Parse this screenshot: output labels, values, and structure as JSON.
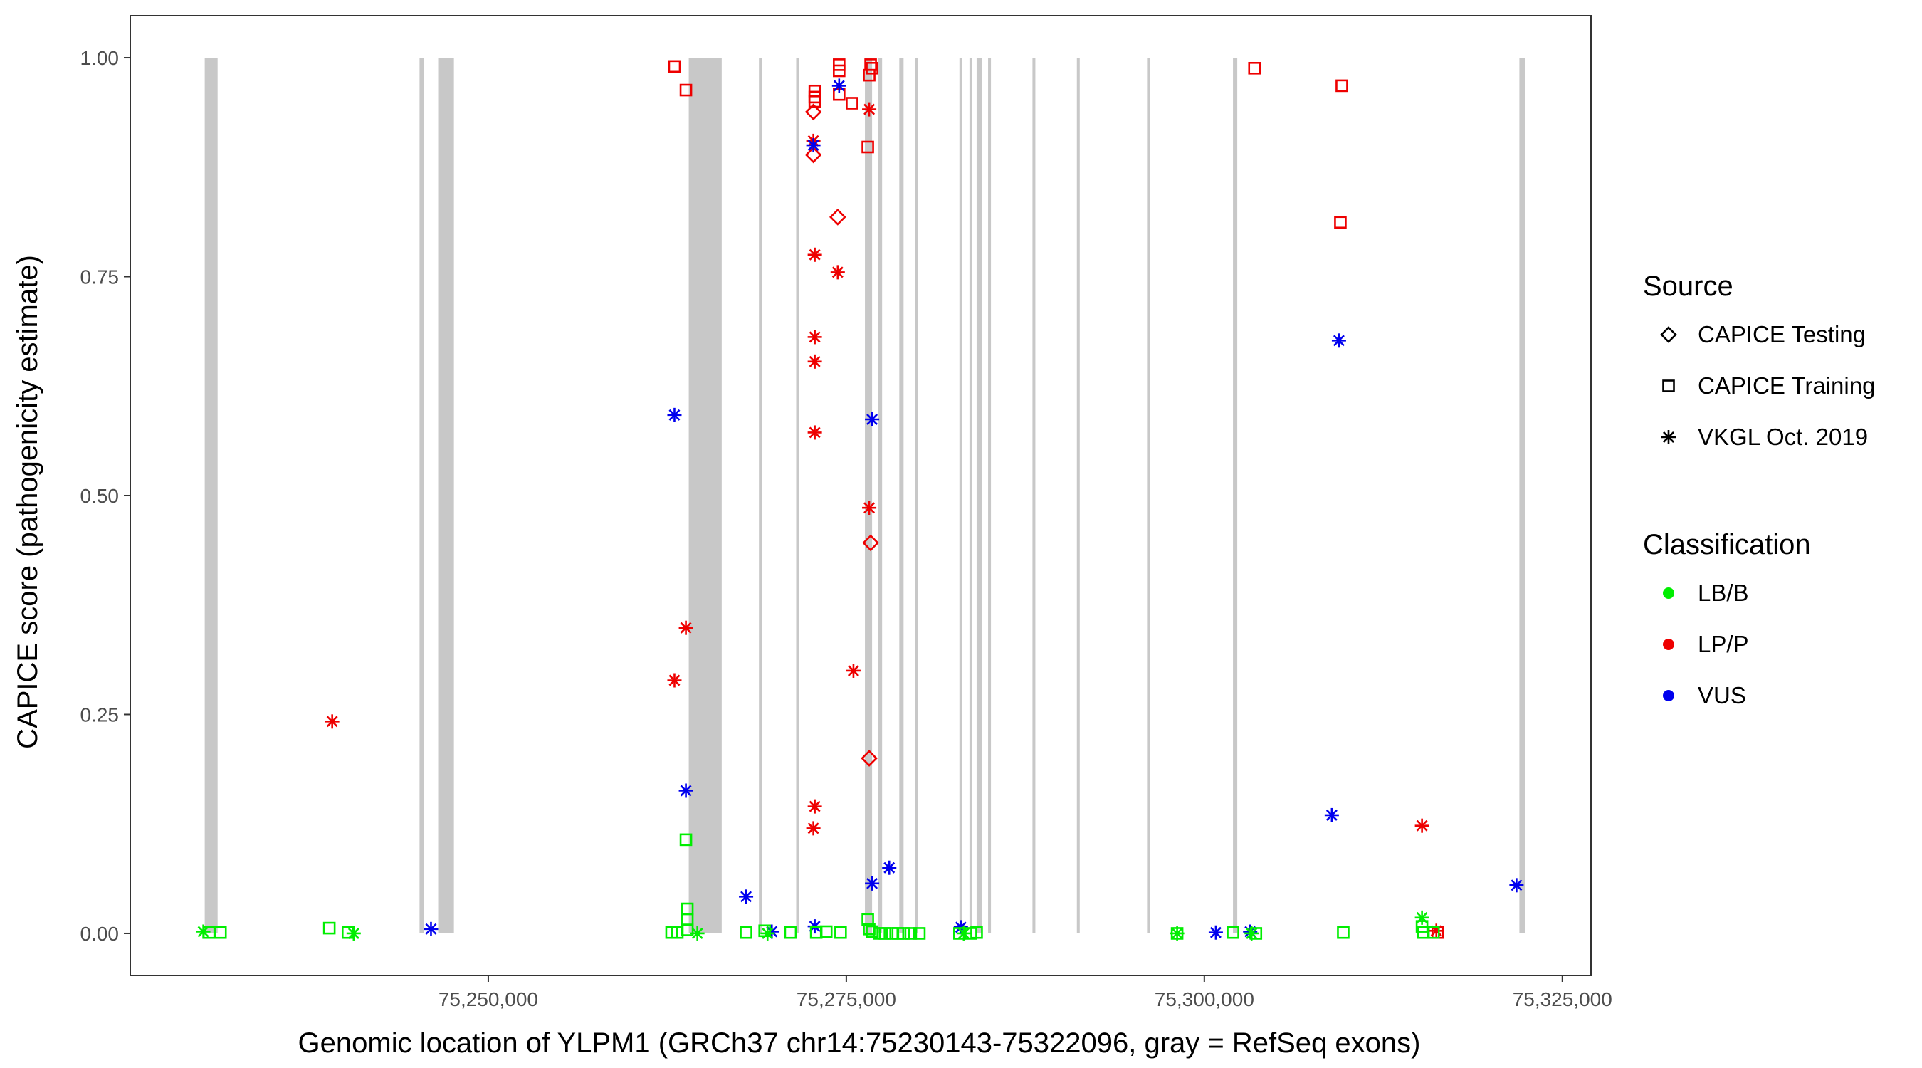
{
  "chart_data": {
    "type": "scatter",
    "title": "",
    "xlabel": "Genomic location of YLPM1 (GRCh37 chr14:75230143-75322096, gray = RefSeq exons)",
    "ylabel": "CAPICE score (pathogenicity estimate)",
    "xlim": [
      75225000,
      75327000
    ],
    "ylim": [
      -0.048,
      1.048
    ],
    "x_ticks": [
      75250000,
      75275000,
      75300000,
      75325000
    ],
    "x_tick_labels": [
      "75,250,000",
      "75,275,000",
      "75,300,000",
      "75,325,000"
    ],
    "y_ticks": [
      0,
      0.25,
      0.5,
      0.75,
      1.0
    ],
    "y_tick_labels": [
      "0.00",
      "0.25",
      "0.50",
      "0.75",
      "1.00"
    ],
    "grid": false,
    "exons": [
      [
        75230200,
        75231100
      ],
      [
        75245200,
        75245500
      ],
      [
        75246500,
        75247600
      ],
      [
        75264000,
        75266300
      ],
      [
        75268900,
        75269100
      ],
      [
        75271500,
        75271700
      ],
      [
        75276300,
        75276800
      ],
      [
        75277200,
        75277500
      ],
      [
        75278700,
        75279000
      ],
      [
        75279800,
        75280000
      ],
      [
        75282900,
        75283100
      ],
      [
        75283600,
        75283800
      ],
      [
        75284100,
        75284500
      ],
      [
        75284900,
        75285100
      ],
      [
        75288000,
        75288200
      ],
      [
        75291100,
        75291300
      ],
      [
        75296000,
        75296200
      ],
      [
        75302000,
        75302300
      ],
      [
        75322000,
        75322400
      ]
    ],
    "legend": {
      "position": "right",
      "source_title": "Source",
      "source_entries": [
        {
          "label": "CAPICE Testing",
          "shape": "diamond"
        },
        {
          "label": "CAPICE Training",
          "shape": "square"
        },
        {
          "label": "VKGL Oct. 2019",
          "shape": "asterisk"
        }
      ],
      "class_title": "Classification",
      "class_entries": [
        {
          "label": "LB/B",
          "color": "#00ee00"
        },
        {
          "label": "LP/P",
          "color": "#ee0000"
        },
        {
          "label": "VUS",
          "color": "#0000ee"
        }
      ]
    },
    "colors": {
      "LB/B": "#00ee00",
      "LP/P": "#ee0000",
      "VUS": "#0000ee"
    },
    "points": [
      {
        "x": 75239100,
        "y": 0.242,
        "source": "VKGL Oct. 2019",
        "class": "LP/P"
      },
      {
        "x": 75263000,
        "y": 0.99,
        "source": "CAPICE Training",
        "class": "LP/P"
      },
      {
        "x": 75263800,
        "y": 0.963,
        "source": "CAPICE Training",
        "class": "LP/P"
      },
      {
        "x": 75263000,
        "y": 0.289,
        "source": "VKGL Oct. 2019",
        "class": "LP/P"
      },
      {
        "x": 75263800,
        "y": 0.349,
        "source": "VKGL Oct. 2019",
        "class": "LP/P"
      },
      {
        "x": 75272800,
        "y": 0.962,
        "source": "CAPICE Training",
        "class": "LP/P"
      },
      {
        "x": 75272800,
        "y": 0.955,
        "source": "CAPICE Training",
        "class": "LP/P"
      },
      {
        "x": 75272800,
        "y": 0.95,
        "source": "CAPICE Training",
        "class": "LP/P"
      },
      {
        "x": 75272700,
        "y": 0.938,
        "source": "CAPICE Testing",
        "class": "LP/P"
      },
      {
        "x": 75272700,
        "y": 0.905,
        "source": "VKGL Oct. 2019",
        "class": "LP/P"
      },
      {
        "x": 75272700,
        "y": 0.889,
        "source": "CAPICE Testing",
        "class": "LP/P"
      },
      {
        "x": 75272800,
        "y": 0.775,
        "source": "VKGL Oct. 2019",
        "class": "LP/P"
      },
      {
        "x": 75272800,
        "y": 0.681,
        "source": "VKGL Oct. 2019",
        "class": "LP/P"
      },
      {
        "x": 75272800,
        "y": 0.653,
        "source": "VKGL Oct. 2019",
        "class": "LP/P"
      },
      {
        "x": 75272800,
        "y": 0.572,
        "source": "VKGL Oct. 2019",
        "class": "LP/P"
      },
      {
        "x": 75272800,
        "y": 0.145,
        "source": "VKGL Oct. 2019",
        "class": "LP/P"
      },
      {
        "x": 75272700,
        "y": 0.12,
        "source": "VKGL Oct. 2019",
        "class": "LP/P"
      },
      {
        "x": 75274500,
        "y": 0.992,
        "source": "CAPICE Training",
        "class": "LP/P"
      },
      {
        "x": 75274500,
        "y": 0.985,
        "source": "CAPICE Training",
        "class": "LP/P"
      },
      {
        "x": 75274500,
        "y": 0.958,
        "source": "CAPICE Training",
        "class": "LP/P"
      },
      {
        "x": 75275400,
        "y": 0.948,
        "source": "CAPICE Training",
        "class": "LP/P"
      },
      {
        "x": 75274400,
        "y": 0.818,
        "source": "CAPICE Testing",
        "class": "LP/P"
      },
      {
        "x": 75274400,
        "y": 0.755,
        "source": "VKGL Oct. 2019",
        "class": "LP/P"
      },
      {
        "x": 75275500,
        "y": 0.3,
        "source": "VKGL Oct. 2019",
        "class": "LP/P"
      },
      {
        "x": 75276700,
        "y": 0.992,
        "source": "CAPICE Training",
        "class": "LP/P"
      },
      {
        "x": 75276800,
        "y": 0.988,
        "source": "CAPICE Training",
        "class": "LP/P"
      },
      {
        "x": 75276600,
        "y": 0.98,
        "source": "CAPICE Training",
        "class": "LP/P"
      },
      {
        "x": 75276600,
        "y": 0.941,
        "source": "VKGL Oct. 2019",
        "class": "LP/P"
      },
      {
        "x": 75276500,
        "y": 0.898,
        "source": "CAPICE Training",
        "class": "LP/P"
      },
      {
        "x": 75276600,
        "y": 0.486,
        "source": "VKGL Oct. 2019",
        "class": "LP/P"
      },
      {
        "x": 75276700,
        "y": 0.446,
        "source": "CAPICE Testing",
        "class": "LP/P"
      },
      {
        "x": 75276600,
        "y": 0.2,
        "source": "CAPICE Testing",
        "class": "LP/P"
      },
      {
        "x": 75303500,
        "y": 0.988,
        "source": "CAPICE Training",
        "class": "LP/P"
      },
      {
        "x": 75309600,
        "y": 0.968,
        "source": "CAPICE Training",
        "class": "LP/P"
      },
      {
        "x": 75309500,
        "y": 0.812,
        "source": "CAPICE Training",
        "class": "LP/P"
      },
      {
        "x": 75315200,
        "y": 0.123,
        "source": "VKGL Oct. 2019",
        "class": "LP/P"
      },
      {
        "x": 75316200,
        "y": 0.003,
        "source": "VKGL Oct. 2019",
        "class": "LP/P"
      },
      {
        "x": 75316300,
        "y": 0.001,
        "source": "CAPICE Training",
        "class": "LP/P"
      },
      {
        "x": 75246000,
        "y": 0.005,
        "source": "VKGL Oct. 2019",
        "class": "VUS"
      },
      {
        "x": 75263000,
        "y": 0.592,
        "source": "VKGL Oct. 2019",
        "class": "VUS"
      },
      {
        "x": 75263800,
        "y": 0.163,
        "source": "VKGL Oct. 2019",
        "class": "VUS"
      },
      {
        "x": 75268000,
        "y": 0.042,
        "source": "VKGL Oct. 2019",
        "class": "VUS"
      },
      {
        "x": 75269800,
        "y": 0.002,
        "source": "VKGL Oct. 2019",
        "class": "VUS"
      },
      {
        "x": 75272700,
        "y": 0.9,
        "source": "VKGL Oct. 2019",
        "class": "VUS"
      },
      {
        "x": 75272800,
        "y": 0.008,
        "source": "VKGL Oct. 2019",
        "class": "VUS"
      },
      {
        "x": 75274500,
        "y": 0.968,
        "source": "VKGL Oct. 2019",
        "class": "VUS"
      },
      {
        "x": 75276800,
        "y": 0.587,
        "source": "VKGL Oct. 2019",
        "class": "VUS"
      },
      {
        "x": 75276800,
        "y": 0.057,
        "source": "VKGL Oct. 2019",
        "class": "VUS"
      },
      {
        "x": 75278000,
        "y": 0.075,
        "source": "VKGL Oct. 2019",
        "class": "VUS"
      },
      {
        "x": 75283000,
        "y": 0.007,
        "source": "VKGL Oct. 2019",
        "class": "VUS"
      },
      {
        "x": 75300800,
        "y": 0.001,
        "source": "VKGL Oct. 2019",
        "class": "VUS"
      },
      {
        "x": 75303200,
        "y": 0.002,
        "source": "VKGL Oct. 2019",
        "class": "VUS"
      },
      {
        "x": 75308900,
        "y": 0.135,
        "source": "VKGL Oct. 2019",
        "class": "VUS"
      },
      {
        "x": 75309400,
        "y": 0.677,
        "source": "VKGL Oct. 2019",
        "class": "VUS"
      },
      {
        "x": 75321800,
        "y": 0.055,
        "source": "VKGL Oct. 2019",
        "class": "VUS"
      },
      {
        "x": 75230100,
        "y": 0.002,
        "source": "VKGL Oct. 2019",
        "class": "LB/B"
      },
      {
        "x": 75230500,
        "y": 0.001,
        "source": "CAPICE Training",
        "class": "LB/B"
      },
      {
        "x": 75231300,
        "y": 0.001,
        "source": "CAPICE Training",
        "class": "LB/B"
      },
      {
        "x": 75238900,
        "y": 0.006,
        "source": "CAPICE Training",
        "class": "LB/B"
      },
      {
        "x": 75240200,
        "y": 0.001,
        "source": "CAPICE Training",
        "class": "LB/B"
      },
      {
        "x": 75240600,
        "y": 0.0,
        "source": "VKGL Oct. 2019",
        "class": "LB/B"
      },
      {
        "x": 75262800,
        "y": 0.001,
        "source": "CAPICE Training",
        "class": "LB/B"
      },
      {
        "x": 75263200,
        "y": 0.001,
        "source": "CAPICE Training",
        "class": "LB/B"
      },
      {
        "x": 75263800,
        "y": 0.107,
        "source": "CAPICE Training",
        "class": "LB/B"
      },
      {
        "x": 75263900,
        "y": 0.028,
        "source": "CAPICE Training",
        "class": "LB/B"
      },
      {
        "x": 75263900,
        "y": 0.016,
        "source": "CAPICE Training",
        "class": "LB/B"
      },
      {
        "x": 75263900,
        "y": 0.004,
        "source": "CAPICE Training",
        "class": "LB/B"
      },
      {
        "x": 75264600,
        "y": 0.0,
        "source": "VKGL Oct. 2019",
        "class": "LB/B"
      },
      {
        "x": 75268000,
        "y": 0.001,
        "source": "CAPICE Training",
        "class": "LB/B"
      },
      {
        "x": 75269300,
        "y": 0.003,
        "source": "CAPICE Training",
        "class": "LB/B"
      },
      {
        "x": 75269500,
        "y": 0.0,
        "source": "VKGL Oct. 2019",
        "class": "LB/B"
      },
      {
        "x": 75271100,
        "y": 0.001,
        "source": "CAPICE Training",
        "class": "LB/B"
      },
      {
        "x": 75272900,
        "y": 0.001,
        "source": "CAPICE Training",
        "class": "LB/B"
      },
      {
        "x": 75273600,
        "y": 0.002,
        "source": "CAPICE Training",
        "class": "LB/B"
      },
      {
        "x": 75274600,
        "y": 0.001,
        "source": "CAPICE Training",
        "class": "LB/B"
      },
      {
        "x": 75276500,
        "y": 0.016,
        "source": "CAPICE Training",
        "class": "LB/B"
      },
      {
        "x": 75276600,
        "y": 0.005,
        "source": "CAPICE Training",
        "class": "LB/B"
      },
      {
        "x": 75276800,
        "y": 0.002,
        "source": "CAPICE Training",
        "class": "LB/B"
      },
      {
        "x": 75277300,
        "y": 0.0,
        "source": "CAPICE Training",
        "class": "LB/B"
      },
      {
        "x": 75277700,
        "y": 0.0,
        "source": "CAPICE Training",
        "class": "LB/B"
      },
      {
        "x": 75278200,
        "y": 0.0,
        "source": "CAPICE Training",
        "class": "LB/B"
      },
      {
        "x": 75278600,
        "y": 0.0,
        "source": "CAPICE Training",
        "class": "LB/B"
      },
      {
        "x": 75279000,
        "y": 0.0,
        "source": "CAPICE Training",
        "class": "LB/B"
      },
      {
        "x": 75279500,
        "y": 0.0,
        "source": "CAPICE Training",
        "class": "LB/B"
      },
      {
        "x": 75280100,
        "y": 0.0,
        "source": "CAPICE Training",
        "class": "LB/B"
      },
      {
        "x": 75282900,
        "y": 0.0,
        "source": "CAPICE Training",
        "class": "LB/B"
      },
      {
        "x": 75283200,
        "y": 0.0,
        "source": "VKGL Oct. 2019",
        "class": "LB/B"
      },
      {
        "x": 75283700,
        "y": 0.0,
        "source": "CAPICE Training",
        "class": "LB/B"
      },
      {
        "x": 75284100,
        "y": 0.001,
        "source": "CAPICE Training",
        "class": "LB/B"
      },
      {
        "x": 75298100,
        "y": 0.0,
        "source": "CAPICE Training",
        "class": "LB/B"
      },
      {
        "x": 75298100,
        "y": 0.0,
        "source": "VKGL Oct. 2019",
        "class": "LB/B"
      },
      {
        "x": 75302000,
        "y": 0.001,
        "source": "CAPICE Training",
        "class": "LB/B"
      },
      {
        "x": 75303300,
        "y": 0.0,
        "source": "VKGL Oct. 2019",
        "class": "LB/B"
      },
      {
        "x": 75303600,
        "y": 0.0,
        "source": "CAPICE Training",
        "class": "LB/B"
      },
      {
        "x": 75309700,
        "y": 0.001,
        "source": "CAPICE Training",
        "class": "LB/B"
      },
      {
        "x": 75315200,
        "y": 0.018,
        "source": "VKGL Oct. 2019",
        "class": "LB/B"
      },
      {
        "x": 75315200,
        "y": 0.008,
        "source": "CAPICE Training",
        "class": "LB/B"
      },
      {
        "x": 75315300,
        "y": 0.001,
        "source": "CAPICE Training",
        "class": "LB/B"
      },
      {
        "x": 75316000,
        "y": 0.001,
        "source": "CAPICE Training",
        "class": "LB/B"
      }
    ]
  }
}
